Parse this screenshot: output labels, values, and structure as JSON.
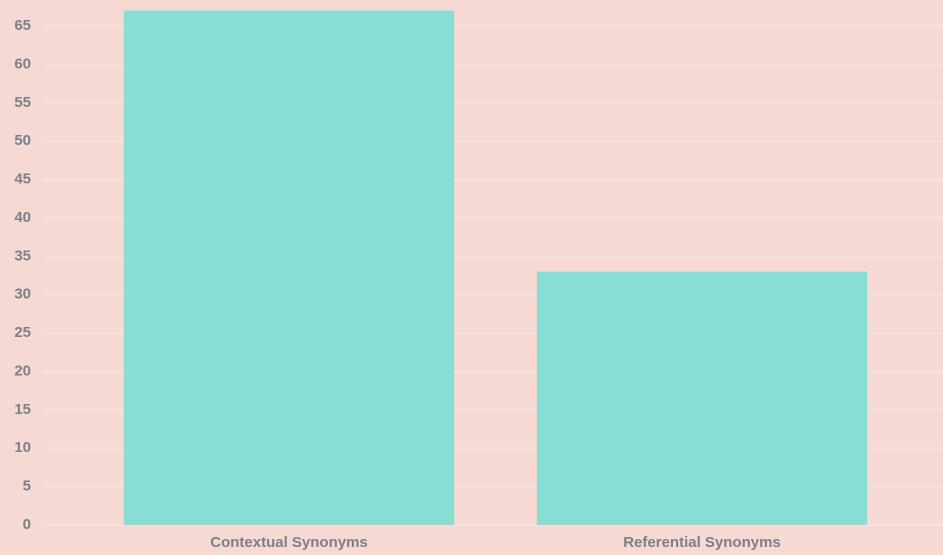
{
  "chart_data": {
    "type": "bar",
    "categories": [
      "Contextual Synonyms",
      "Referential Synonyms"
    ],
    "values": [
      67,
      33
    ],
    "color": "#88ddd4",
    "ylim": [
      0,
      68
    ],
    "yticks": [
      0,
      5,
      10,
      15,
      20,
      25,
      30,
      35,
      40,
      45,
      50,
      55,
      60,
      65
    ],
    "grid": true
  }
}
